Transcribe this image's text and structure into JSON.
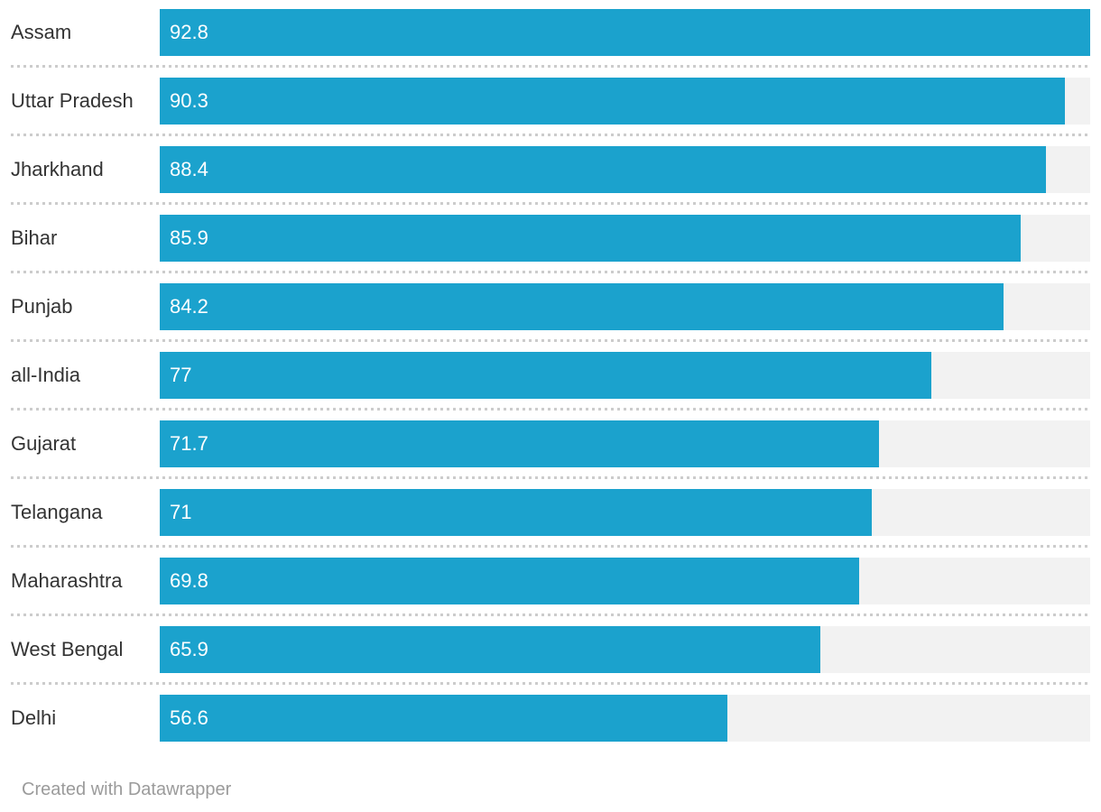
{
  "chart_data": {
    "type": "bar",
    "orientation": "horizontal",
    "title": "",
    "xlabel": "",
    "ylabel": "",
    "xlim": [
      0,
      92.8
    ],
    "grid": false,
    "legend": false,
    "categories": [
      "Assam",
      "Uttar Pradesh",
      "Jharkhand",
      "Bihar",
      "Punjab",
      "all-India",
      "Gujarat",
      "Telangana",
      "Maharashtra",
      "West Bengal",
      "Delhi"
    ],
    "values": [
      92.8,
      90.3,
      88.4,
      85.9,
      84.2,
      77,
      71.7,
      71,
      69.8,
      65.9,
      56.6
    ],
    "value_labels": [
      "92.8",
      "90.3",
      "88.4",
      "85.9",
      "84.2",
      "77",
      "71.7",
      "71",
      "69.8",
      "65.9",
      "56.6"
    ]
  },
  "footer": {
    "credit": "Created with Datawrapper"
  },
  "colors": {
    "bar": "#1ba2cd",
    "track": "#f2f2f2",
    "separator": "#cccccc",
    "label_text": "#333333",
    "value_text": "#ffffff",
    "footer_text": "#9b9b9b",
    "background": "#ffffff"
  }
}
